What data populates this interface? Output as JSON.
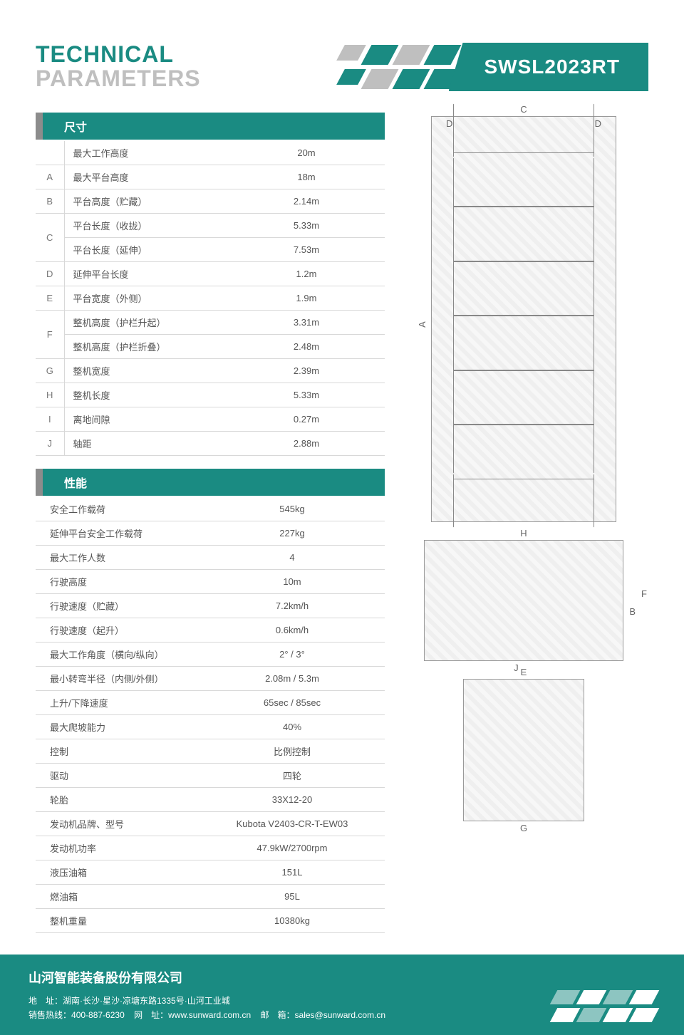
{
  "header": {
    "title_line1": "TECHNICAL",
    "title_line2": "PARAMETERS",
    "model": "SWSL2023RT"
  },
  "colors": {
    "teal": "#1a8b82",
    "grey": "#bfbfbf",
    "text": "#555555",
    "border": "#d8d8d8"
  },
  "section1": {
    "title": "尺寸",
    "rows": [
      {
        "code": "",
        "label": "最大工作高度",
        "val": "20m"
      },
      {
        "code": "A",
        "label": "最大平台高度",
        "val": "18m"
      },
      {
        "code": "B",
        "label": "平台高度（贮藏）",
        "val": "2.14m"
      },
      {
        "code": "C",
        "label": "平台长度（收拢）",
        "val": "5.33m"
      },
      {
        "code": "",
        "label": "平台长度（延伸）",
        "val": "7.53m"
      },
      {
        "code": "D",
        "label": "延伸平台长度",
        "val": "1.2m"
      },
      {
        "code": "E",
        "label": "平台宽度（外侧）",
        "val": "1.9m"
      },
      {
        "code": "F",
        "label": "整机高度（护栏升起）",
        "val": "3.31m"
      },
      {
        "code": "",
        "label": "整机高度（护栏折叠）",
        "val": "2.48m"
      },
      {
        "code": "G",
        "label": "整机宽度",
        "val": "2.39m"
      },
      {
        "code": "H",
        "label": "整机长度",
        "val": "5.33m"
      },
      {
        "code": "I",
        "label": "离地间隙",
        "val": "0.27m"
      },
      {
        "code": "J",
        "label": "轴距",
        "val": "2.88m"
      }
    ]
  },
  "section2": {
    "title": "性能",
    "rows": [
      {
        "label": "安全工作载荷",
        "val": "545kg"
      },
      {
        "label": "延伸平台安全工作载荷",
        "val": "227kg"
      },
      {
        "label": "最大工作人数",
        "val": "4"
      },
      {
        "label": "行驶高度",
        "val": "10m"
      },
      {
        "label": "行驶速度（贮藏）",
        "val": "7.2km/h"
      },
      {
        "label": "行驶速度（起升）",
        "val": "0.6km/h"
      },
      {
        "label": "最大工作角度（横向/纵向）",
        "val": "2° / 3°"
      },
      {
        "label": "最小转弯半径（内侧/外侧）",
        "val": "2.08m / 5.3m"
      },
      {
        "label": "上升/下降速度",
        "val": "65sec / 85sec"
      },
      {
        "label": "最大爬坡能力",
        "val": "40%"
      },
      {
        "label": "控制",
        "val": "比例控制"
      },
      {
        "label": "驱动",
        "val": "四轮"
      },
      {
        "label": "轮胎",
        "val": "33X12-20"
      },
      {
        "label": "发动机品牌、型号",
        "val": "Kubota V2403-CR-T-EW03"
      },
      {
        "label": "发动机功率",
        "val": "47.9kW/2700rpm"
      },
      {
        "label": "液压油箱",
        "val": "151L"
      },
      {
        "label": "燃油箱",
        "val": "95L"
      },
      {
        "label": "整机重量",
        "val": "10380kg"
      }
    ]
  },
  "diagram_labels": {
    "top_C": "C",
    "top_D1": "D",
    "top_D2": "D",
    "side_A": "A",
    "d2_H": "H",
    "d2_J": "J",
    "d2_B": "B",
    "d2_F": "F",
    "d3_E": "E",
    "d3_G": "G"
  },
  "footer": {
    "company": "山河智能装备股份有限公司",
    "address_label": "地　址：",
    "address": "湖南·长沙·星沙·凉塘东路1335号·山河工业城",
    "hotline_label": "销售热线：",
    "hotline": "400-887-6230",
    "web_label": "网　址：",
    "web": "www.sunward.com.cn",
    "email_label": "邮　箱：",
    "email": "sales@sunward.com.cn"
  }
}
